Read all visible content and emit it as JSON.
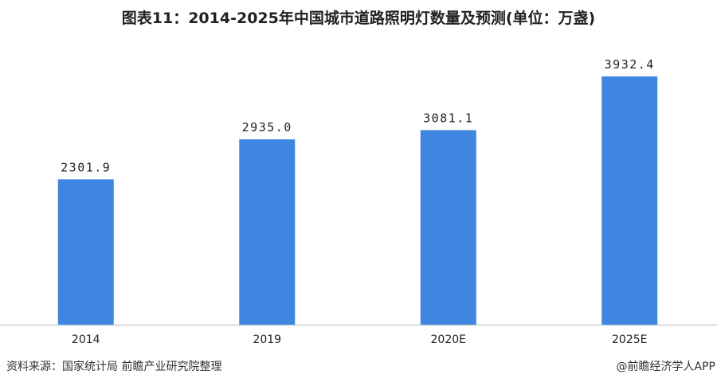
{
  "chart_data": {
    "type": "bar",
    "title": "图表11：2014-2025年中国城市道路照明灯数量及预测(单位：万盏)",
    "categories": [
      "2014",
      "2019",
      "2020E",
      "2025E"
    ],
    "values": [
      2301.9,
      2935.0,
      3081.1,
      3932.4
    ],
    "data_labels": [
      "2301.9",
      "2935.0",
      "3081.1",
      "3932.4"
    ],
    "xlabel": "",
    "ylabel": "",
    "ylim": [
      0,
      4500
    ],
    "grid": false,
    "bar_color": "#3f86e0"
  },
  "footer": {
    "source": "资料来源：国家统计局 前瞻产业研究院整理",
    "credit": "@前瞻经济学人APP"
  }
}
